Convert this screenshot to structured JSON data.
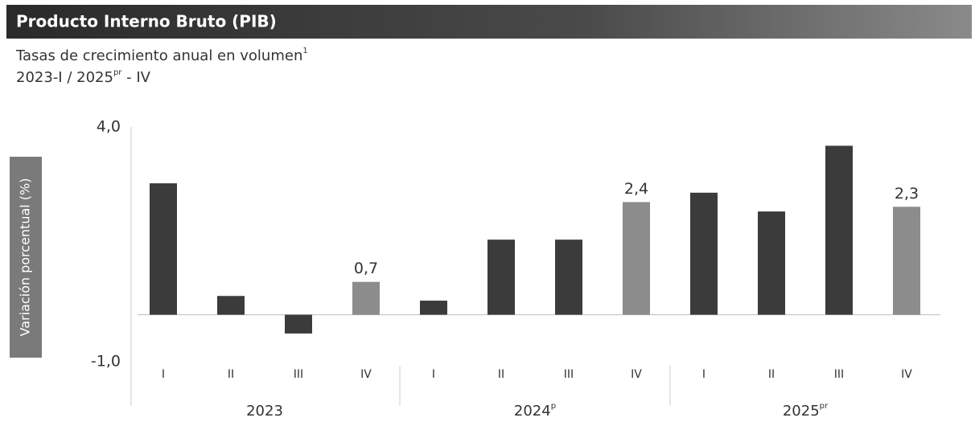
{
  "chart_data": {
    "type": "bar",
    "title": "Producto Interno Bruto (PIB)",
    "subtitle": {
      "text": "Tasas de crecimiento anual en volumen",
      "sup": "1"
    },
    "period": {
      "start": "2023-I / 2025",
      "sup": "pr",
      "end": " - IV"
    },
    "y_label": "Variación porcentual (%)",
    "categories": [
      "I",
      "II",
      "III",
      "IV",
      "I",
      "II",
      "III",
      "IV",
      "I",
      "II",
      "III",
      "IV"
    ],
    "groups": [
      {
        "label": "2023",
        "sup": null
      },
      {
        "label": "2024",
        "sup": "p"
      },
      {
        "label": "2025",
        "sup": "pr"
      }
    ],
    "values": [
      2.8,
      0.4,
      -0.4,
      0.7,
      0.3,
      1.6,
      1.6,
      2.4,
      2.6,
      2.2,
      3.6,
      2.3
    ],
    "value_labels": [
      null,
      null,
      null,
      "0,7",
      null,
      null,
      null,
      "2,4",
      null,
      null,
      null,
      "2,3"
    ],
    "colors": [
      "#3b3b3b",
      "#3b3b3b",
      "#3b3b3b",
      "#8c8c8c",
      "#3b3b3b",
      "#3b3b3b",
      "#3b3b3b",
      "#8c8c8c",
      "#3b3b3b",
      "#3b3b3b",
      "#3b3b3b",
      "#8c8c8c"
    ],
    "ylim": [
      -1.0,
      4.0
    ],
    "yticks": [
      {
        "value": 4.0,
        "label": "4,0"
      },
      {
        "value": -1.0,
        "label": "-1,0"
      }
    ]
  }
}
